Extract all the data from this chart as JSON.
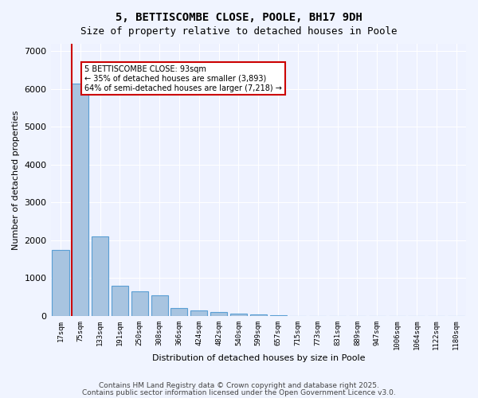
{
  "title_line1": "5, BETTISCOMBE CLOSE, POOLE, BH17 9DH",
  "title_line2": "Size of property relative to detached houses in Poole",
  "xlabel": "Distribution of detached houses by size in Poole",
  "ylabel": "Number of detached properties",
  "categories": [
    "17sqm",
    "75sqm",
    "133sqm",
    "191sqm",
    "250sqm",
    "308sqm",
    "366sqm",
    "424sqm",
    "482sqm",
    "540sqm",
    "599sqm",
    "657sqm",
    "715sqm",
    "773sqm",
    "831sqm",
    "889sqm",
    "947sqm",
    "1006sqm",
    "1064sqm",
    "1122sqm",
    "1180sqm"
  ],
  "values": [
    1750,
    6150,
    2100,
    800,
    650,
    550,
    200,
    150,
    100,
    65,
    40,
    15,
    8,
    3,
    2,
    1,
    1,
    0,
    0,
    0,
    0
  ],
  "bar_color": "#a8c4e0",
  "bar_edge_color": "#5a9fd4",
  "red_line_x": 1,
  "annotation_text": "5 BETTISCOMBE CLOSE: 93sqm\n← 35% of detached houses are smaller (3,893)\n64% of semi-detached houses are larger (7,218) →",
  "annotation_box_color": "#ffffff",
  "annotation_box_edge": "#cc0000",
  "red_line_color": "#cc0000",
  "footer_line1": "Contains HM Land Registry data © Crown copyright and database right 2025.",
  "footer_line2": "Contains public sector information licensed under the Open Government Licence v3.0.",
  "background_color": "#f0f4ff",
  "plot_bg_color": "#eef2ff",
  "ylim": [
    0,
    7200
  ],
  "yticks": [
    0,
    1000,
    2000,
    3000,
    4000,
    5000,
    6000,
    7000
  ]
}
